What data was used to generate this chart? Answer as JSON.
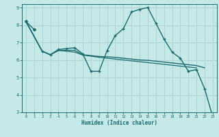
{
  "xlabel": "Humidex (Indice chaleur)",
  "background_color": "#c5e8e8",
  "grid_color": "#add4d4",
  "line_color": "#1a6b6b",
  "xlim": [
    -0.5,
    23.5
  ],
  "ylim": [
    3,
    9.2
  ],
  "xticks": [
    0,
    1,
    2,
    3,
    4,
    5,
    6,
    7,
    8,
    9,
    10,
    11,
    12,
    13,
    14,
    15,
    16,
    17,
    18,
    19,
    20,
    21,
    22,
    23
  ],
  "yticks": [
    3,
    4,
    5,
    6,
    7,
    8,
    9
  ],
  "lines": [
    {
      "x": [
        0,
        1
      ],
      "y": [
        8.2,
        7.75
      ],
      "marker": "D",
      "markersize": 2.0,
      "linewidth": 1.0
    },
    {
      "x": [
        0,
        2,
        3,
        4,
        5,
        6,
        7,
        8,
        9,
        10,
        11,
        12,
        13,
        14,
        15,
        16,
        17,
        18,
        19,
        20,
        21,
        22,
        23
      ],
      "y": [
        8.2,
        6.5,
        6.3,
        6.6,
        6.65,
        6.7,
        6.35,
        5.35,
        5.35,
        6.55,
        7.4,
        7.8,
        8.75,
        8.9,
        9.0,
        8.1,
        7.2,
        6.45,
        6.1,
        5.35,
        5.45,
        4.35,
        2.75
      ],
      "marker": "+",
      "markersize": 3.5,
      "linewidth": 1.0
    },
    {
      "x": [
        0,
        2,
        3,
        4,
        5,
        6,
        7,
        8,
        9,
        10,
        11,
        12,
        13,
        14,
        15,
        16,
        17,
        18,
        19,
        20,
        21,
        22
      ],
      "y": [
        8.2,
        6.5,
        6.3,
        6.55,
        6.55,
        6.55,
        6.3,
        6.25,
        6.2,
        6.18,
        6.15,
        6.1,
        6.05,
        6.0,
        5.98,
        5.93,
        5.88,
        5.83,
        5.78,
        5.73,
        5.68,
        5.55
      ],
      "marker": null,
      "markersize": 0,
      "linewidth": 1.0
    },
    {
      "x": [
        0,
        2,
        3,
        4,
        5,
        6,
        7,
        8,
        9,
        10,
        11,
        12,
        13,
        14,
        15,
        16,
        17,
        18,
        19,
        20,
        21
      ],
      "y": [
        8.2,
        6.5,
        6.3,
        6.55,
        6.5,
        6.45,
        6.28,
        6.22,
        6.15,
        6.1,
        6.05,
        6.0,
        5.95,
        5.9,
        5.85,
        5.8,
        5.75,
        5.7,
        5.65,
        5.6,
        5.55
      ],
      "marker": null,
      "markersize": 0,
      "linewidth": 0.9
    }
  ]
}
